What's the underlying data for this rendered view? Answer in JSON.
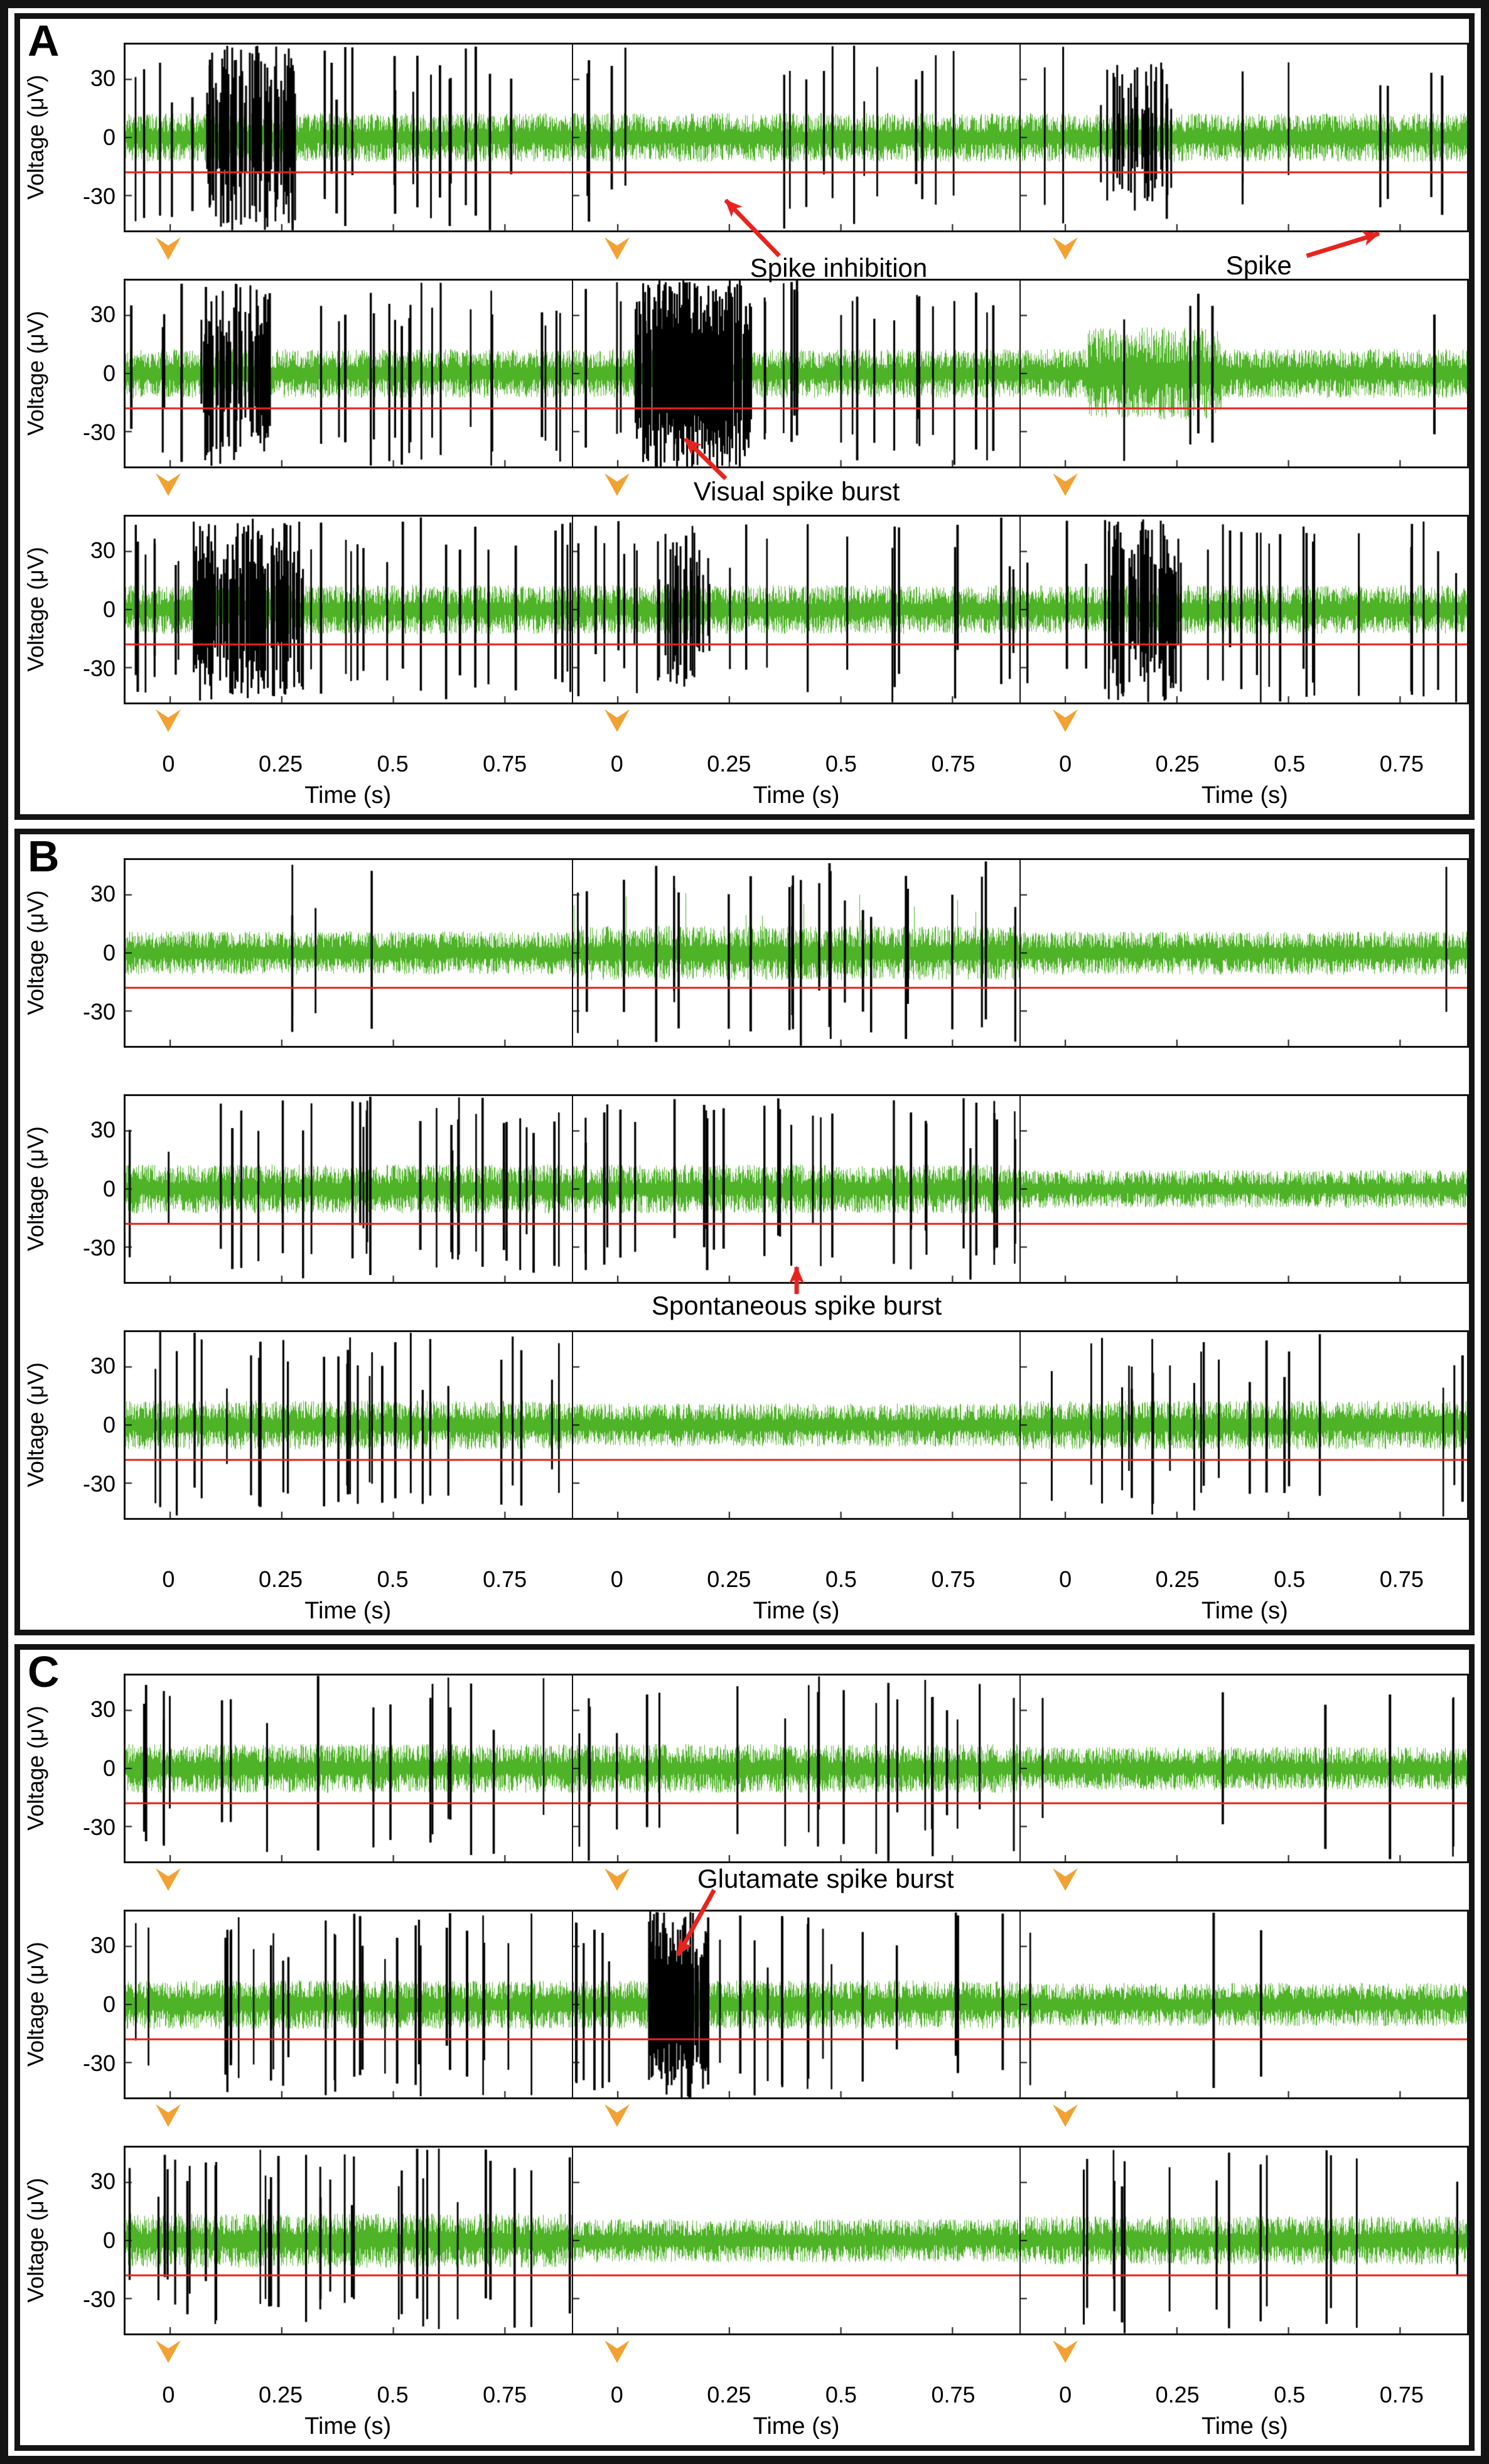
{
  "colors": {
    "trace": "#4eb327",
    "spike": "#000000",
    "threshold": "#e8231e",
    "stim_marker": "#f2a233",
    "annotation_arrow": "#e8231e",
    "frame": "#141414"
  },
  "axis": {
    "ylabel": "Voltage (μV)",
    "xlabel": "Time (s)",
    "yticks": [
      "30",
      "0",
      "-30"
    ],
    "ytick_values": [
      30,
      0,
      -30
    ],
    "xticks": [
      "0",
      "0.25",
      "0.5",
      "0.75"
    ],
    "xtick_values": [
      0,
      0.25,
      0.5,
      0.75
    ],
    "xlim": [
      -0.1,
      0.9
    ],
    "ylim": [
      -48,
      48
    ],
    "threshold_uV": -18
  },
  "chart_data": {
    "type": "line",
    "layout": {
      "rows_per_panel": 3,
      "cols_per_panel": 3,
      "grid": "off"
    },
    "panels": [
      {
        "label": "A",
        "stim_markers": true,
        "cells": [
          [
            {
              "seed": 1,
              "noise": 9,
              "n_spikes": 26,
              "bursts": [
                {
                  "t0": 0.08,
                  "t1": 0.28,
                  "level": "strong"
                }
              ]
            },
            {
              "seed": 2,
              "noise": 9,
              "n_spikes": 24,
              "spike_gap": [
                0.03,
                0.33
              ],
              "bursts": []
            },
            {
              "seed": 3,
              "noise": 9,
              "n_spikes": 9,
              "extra_spikes": [
                0.82
              ],
              "bursts": [
                {
                  "t0": 0.06,
                  "t1": 0.24,
                  "level": "medium"
                }
              ]
            }
          ],
          [
            {
              "seed": 4,
              "noise": 9,
              "n_spikes": 28,
              "bursts": [
                {
                  "t0": 0.07,
                  "t1": 0.22,
                  "level": "strong"
                }
              ]
            },
            {
              "seed": 5,
              "noise": 9,
              "n_spikes": 30,
              "bursts": [
                {
                  "t0": 0.04,
                  "t1": 0.3,
                  "level": "vstrong"
                }
              ]
            },
            {
              "seed": 6,
              "noise": 9,
              "n_spikes": 5,
              "green_burst": [
                0.05,
                0.35
              ],
              "bursts": []
            }
          ],
          [
            {
              "seed": 7,
              "noise": 9,
              "n_spikes": 32,
              "bursts": [
                {
                  "t0": 0.05,
                  "t1": 0.3,
                  "level": "strong"
                }
              ]
            },
            {
              "seed": 8,
              "noise": 9,
              "n_spikes": 22,
              "bursts": [
                {
                  "t0": 0.09,
                  "t1": 0.21,
                  "level": "medium"
                }
              ]
            },
            {
              "seed": 9,
              "noise": 9,
              "n_spikes": 24,
              "bursts": [
                {
                  "t0": 0.09,
                  "t1": 0.26,
                  "level": "strong"
                }
              ]
            }
          ]
        ],
        "annotations": [
          {
            "text": "Spike inhibition",
            "x": 56.5,
            "y": 31.3,
            "arrow": [
              52.4,
              29.8,
              48.7,
              22.8
            ]
          },
          {
            "text": "Spike",
            "x": 85.5,
            "y": 31.0,
            "arrow": [
              88.8,
              29.8,
              93.8,
              27.0
            ]
          },
          {
            "text": "Visual spike burst",
            "x": 53.6,
            "y": 59.4,
            "arrow": [
              48.7,
              57.8,
              45.9,
              52.8
            ]
          }
        ]
      },
      {
        "label": "B",
        "stim_markers": false,
        "cells": [
          [
            {
              "seed": 10,
              "noise": 8,
              "n_spikes": 4,
              "bursts": []
            },
            {
              "seed": 11,
              "noise": 10,
              "green_tall": true,
              "n_spikes": 26,
              "bursts": []
            },
            {
              "seed": 12,
              "noise": 8,
              "n_spikes": 1,
              "bursts": []
            }
          ],
          [
            {
              "seed": 13,
              "noise": 9,
              "n_spikes": 30,
              "bursts": []
            },
            {
              "seed": 14,
              "noise": 9,
              "n_spikes": 32,
              "bursts": []
            },
            {
              "seed": 15,
              "noise": 7,
              "n_spikes": 0,
              "bursts": []
            }
          ],
          [
            {
              "seed": 16,
              "noise": 9,
              "n_spikes": 30,
              "bursts": []
            },
            {
              "seed": 17,
              "noise": 8,
              "n_spikes": 0,
              "bursts": []
            },
            {
              "seed": 18,
              "noise": 9,
              "n_spikes": 22,
              "bursts": []
            }
          ]
        ],
        "annotations": [
          {
            "text": "Spontaneous spike burst",
            "x": 53.6,
            "y": 59.3,
            "arrow": [
              53.6,
              57.8,
              53.6,
              54.4
            ]
          }
        ]
      },
      {
        "label": "C",
        "stim_markers": true,
        "cells": [
          [
            {
              "seed": 19,
              "noise": 9,
              "n_spikes": 18,
              "bursts": []
            },
            {
              "seed": 20,
              "noise": 9,
              "n_spikes": 22,
              "bursts": []
            },
            {
              "seed": 21,
              "noise": 8,
              "n_spikes": 6,
              "bursts": []
            }
          ],
          [
            {
              "seed": 22,
              "noise": 9,
              "n_spikes": 30,
              "bursts": []
            },
            {
              "seed": 23,
              "noise": 9,
              "n_spikes": 26,
              "bursts": [
                {
                  "t0": 0.07,
                  "t1": 0.2,
                  "level": "vstrong"
                }
              ]
            },
            {
              "seed": 24,
              "noise": 8,
              "n_spikes": 3,
              "bursts": []
            }
          ],
          [
            {
              "seed": 25,
              "noise": 10,
              "n_spikes": 34,
              "bursts": []
            },
            {
              "seed": 26,
              "noise": 8,
              "n_spikes": 0,
              "bursts": []
            },
            {
              "seed": 27,
              "noise": 9,
              "n_spikes": 16,
              "bursts": []
            }
          ]
        ],
        "annotations": [
          {
            "text": "Glutamate spike burst",
            "x": 55.6,
            "y": 28.8,
            "arrow": [
              47.9,
              30.2,
              45.4,
              38.4
            ]
          }
        ]
      }
    ]
  }
}
